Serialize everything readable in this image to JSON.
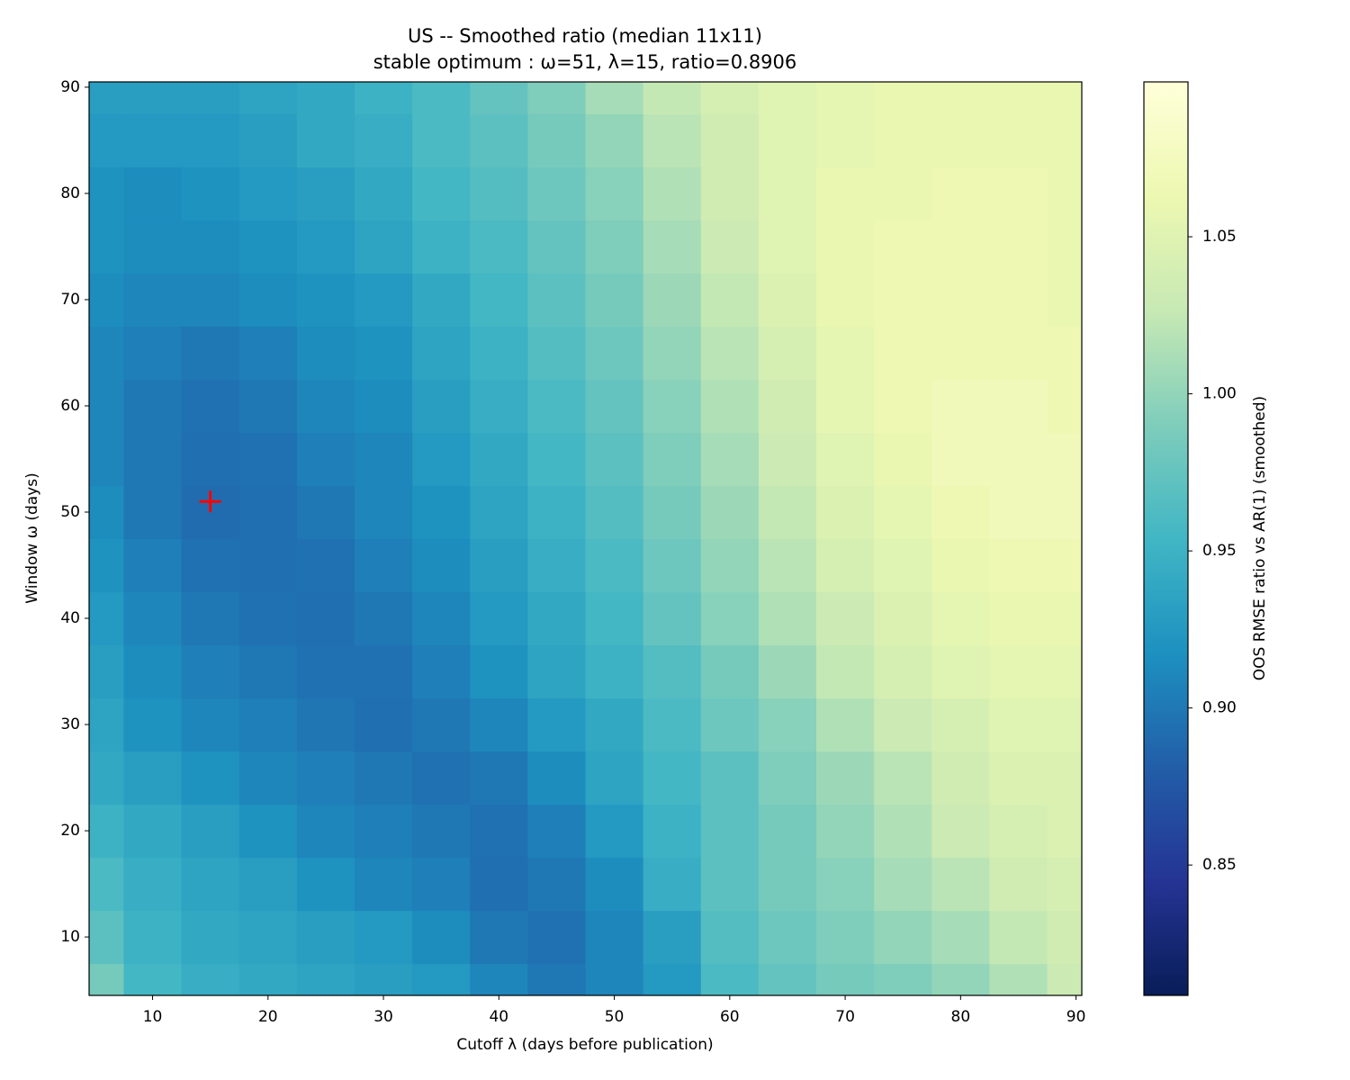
{
  "chart_data": {
    "type": "heatmap",
    "title": "US -- Smoothed ratio (median 11x11)",
    "subtitle": "stable optimum : ω=51, λ=15, ratio=0.8906",
    "x_label": "Cutoff λ (days before publication)",
    "y_label": "Window ω (days)",
    "colorbar_label": "OOS RMSE ratio vs AR(1) (smoothed)",
    "x": [
      5,
      10,
      15,
      20,
      25,
      30,
      35,
      40,
      45,
      50,
      55,
      60,
      65,
      70,
      75,
      80,
      85,
      90
    ],
    "y": [
      5,
      10,
      15,
      20,
      25,
      30,
      35,
      40,
      45,
      50,
      55,
      60,
      65,
      70,
      75,
      80,
      85,
      90
    ],
    "z": [
      [
        0.985,
        0.955,
        0.945,
        0.94,
        0.935,
        0.93,
        0.925,
        0.91,
        0.9,
        0.91,
        0.925,
        0.96,
        0.975,
        0.985,
        0.99,
        1.0,
        1.015,
        1.03
      ],
      [
        0.97,
        0.95,
        0.94,
        0.935,
        0.93,
        0.925,
        0.915,
        0.9,
        0.895,
        0.91,
        0.93,
        0.965,
        0.98,
        0.99,
        1.0,
        1.01,
        1.025,
        1.035
      ],
      [
        0.96,
        0.945,
        0.935,
        0.93,
        0.92,
        0.91,
        0.905,
        0.893,
        0.9,
        0.915,
        0.945,
        0.97,
        0.985,
        0.995,
        1.01,
        1.02,
        1.035,
        1.04
      ],
      [
        0.95,
        0.94,
        0.93,
        0.92,
        0.91,
        0.905,
        0.9,
        0.895,
        0.905,
        0.925,
        0.95,
        0.97,
        0.985,
        1.0,
        1.015,
        1.03,
        1.04,
        1.045
      ],
      [
        0.94,
        0.93,
        0.92,
        0.91,
        0.905,
        0.9,
        0.895,
        0.9,
        0.915,
        0.935,
        0.955,
        0.97,
        0.99,
        1.005,
        1.02,
        1.035,
        1.045,
        1.045
      ],
      [
        0.935,
        0.92,
        0.91,
        0.905,
        0.898,
        0.893,
        0.9,
        0.91,
        0.925,
        0.94,
        0.96,
        0.98,
        0.995,
        1.015,
        1.03,
        1.04,
        1.05,
        1.05
      ],
      [
        0.93,
        0.915,
        0.905,
        0.9,
        0.895,
        0.895,
        0.905,
        0.92,
        0.935,
        0.95,
        0.965,
        0.985,
        1.005,
        1.025,
        1.04,
        1.05,
        1.055,
        1.055
      ],
      [
        0.925,
        0.91,
        0.9,
        0.895,
        0.893,
        0.9,
        0.91,
        0.925,
        0.94,
        0.955,
        0.975,
        0.995,
        1.015,
        1.03,
        1.045,
        1.055,
        1.06,
        1.06
      ],
      [
        0.92,
        0.905,
        0.895,
        0.893,
        0.895,
        0.905,
        0.915,
        0.93,
        0.945,
        0.96,
        0.98,
        1.0,
        1.02,
        1.04,
        1.05,
        1.06,
        1.065,
        1.065
      ],
      [
        0.915,
        0.9,
        0.891,
        0.893,
        0.9,
        0.91,
        0.92,
        0.935,
        0.95,
        0.965,
        0.985,
        1.005,
        1.025,
        1.045,
        1.055,
        1.065,
        1.07,
        1.07
      ],
      [
        0.91,
        0.9,
        0.893,
        0.895,
        0.905,
        0.91,
        0.925,
        0.94,
        0.955,
        0.97,
        0.99,
        1.01,
        1.03,
        1.05,
        1.06,
        1.07,
        1.07,
        1.07
      ],
      [
        0.91,
        0.9,
        0.895,
        0.9,
        0.91,
        0.915,
        0.93,
        0.945,
        0.96,
        0.975,
        0.995,
        1.015,
        1.035,
        1.055,
        1.065,
        1.07,
        1.07,
        1.065
      ],
      [
        0.91,
        0.905,
        0.9,
        0.905,
        0.915,
        0.92,
        0.935,
        0.95,
        0.965,
        0.98,
        1.0,
        1.02,
        1.04,
        1.055,
        1.065,
        1.065,
        1.065,
        1.065
      ],
      [
        0.915,
        0.91,
        0.91,
        0.915,
        0.92,
        0.925,
        0.94,
        0.955,
        0.97,
        0.985,
        1.005,
        1.025,
        1.045,
        1.06,
        1.065,
        1.065,
        1.065,
        1.06
      ],
      [
        0.92,
        0.915,
        0.915,
        0.92,
        0.925,
        0.935,
        0.95,
        0.96,
        0.975,
        0.99,
        1.01,
        1.03,
        1.05,
        1.06,
        1.065,
        1.065,
        1.065,
        1.06
      ],
      [
        0.92,
        0.915,
        0.92,
        0.925,
        0.93,
        0.94,
        0.955,
        0.965,
        0.98,
        0.995,
        1.015,
        1.035,
        1.05,
        1.06,
        1.06,
        1.065,
        1.065,
        1.06
      ],
      [
        0.925,
        0.925,
        0.925,
        0.93,
        0.94,
        0.945,
        0.96,
        0.97,
        0.985,
        1.0,
        1.02,
        1.035,
        1.05,
        1.055,
        1.06,
        1.06,
        1.06,
        1.06
      ],
      [
        0.93,
        0.93,
        0.93,
        0.935,
        0.94,
        0.95,
        0.96,
        0.975,
        0.99,
        1.01,
        1.025,
        1.04,
        1.05,
        1.055,
        1.06,
        1.06,
        1.06,
        1.06
      ]
    ],
    "xlim": [
      4.5,
      90.5
    ],
    "ylim": [
      4.5,
      90.5
    ],
    "xticks": [
      10,
      20,
      30,
      40,
      50,
      60,
      70,
      80,
      90
    ],
    "yticks": [
      10,
      20,
      30,
      40,
      50,
      60,
      70,
      80,
      90
    ],
    "clim": [
      0.8085,
      1.0993
    ],
    "cticks": [
      0.85,
      {
        "value": 0.9,
        "label": "0.90"
      },
      0.95,
      {
        "value": 1.0,
        "label": "1.00"
      },
      1.05
    ],
    "colormap": [
      "#ffffd9",
      "#edf8b1",
      "#c7e9b4",
      "#7fcdbb",
      "#41b6c4",
      "#1d91c0",
      "#225ea8",
      "#253494",
      "#081d58"
    ],
    "marker": {
      "x": 15,
      "y": 51,
      "color": "#ff0000"
    }
  }
}
